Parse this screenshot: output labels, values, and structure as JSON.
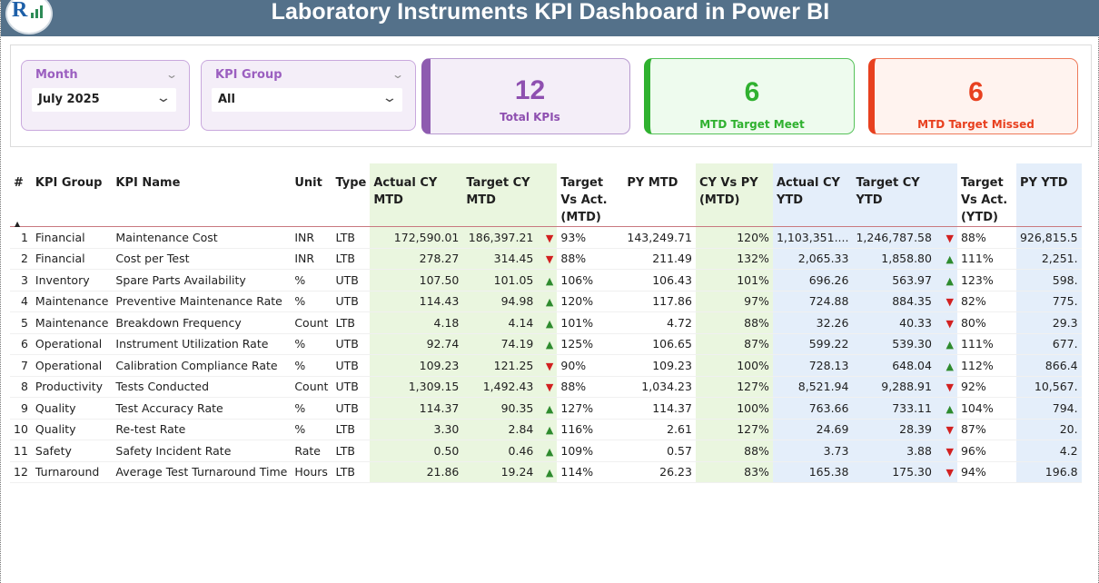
{
  "title": "Laboratory Instruments KPI Dashboard in Power BI",
  "slicers": {
    "month": {
      "label": "Month",
      "value": "July 2025"
    },
    "kpi_group": {
      "label": "KPI Group",
      "value": "All"
    }
  },
  "cards": {
    "total": {
      "value": "12",
      "caption": "Total KPIs",
      "color": "#8e4fb0"
    },
    "met": {
      "value": "6",
      "caption": "MTD Target Meet",
      "color": "#2fb12f"
    },
    "missed": {
      "value": "6",
      "caption": "MTD Target Missed",
      "color": "#e8401f"
    }
  },
  "colors": {
    "header": "#54718a",
    "mtd_col": "#eaf6df",
    "ytd_col": "#e4eefa",
    "up": "#2e8b2e",
    "down": "#d22020"
  },
  "table": {
    "headers": [
      "#",
      "KPI Group",
      "KPI Name",
      "Unit",
      "Type",
      "Actual CY MTD",
      "Target CY MTD",
      "",
      "Target Vs Act. (MTD)",
      "PY MTD",
      "CY Vs PY (MTD)",
      "Actual CY YTD",
      "Target CY YTD",
      "",
      "Target Vs Act. (YTD)",
      "PY YTD"
    ],
    "rows": [
      [
        "1",
        "Financial",
        "Maintenance Cost",
        "INR",
        "LTB",
        "172,590.01",
        "186,397.21",
        "down",
        "93%",
        "143,249.71",
        "120%",
        "1,103,351....",
        "1,246,787.58",
        "down",
        "88%",
        "926,815.5"
      ],
      [
        "2",
        "Financial",
        "Cost per Test",
        "INR",
        "LTB",
        "278.27",
        "314.45",
        "down",
        "88%",
        "211.49",
        "132%",
        "2,065.33",
        "1,858.80",
        "up",
        "111%",
        "2,251."
      ],
      [
        "3",
        "Inventory",
        "Spare Parts Availability",
        "%",
        "UTB",
        "107.50",
        "101.05",
        "up",
        "106%",
        "106.43",
        "101%",
        "696.26",
        "563.97",
        "up",
        "123%",
        "598."
      ],
      [
        "4",
        "Maintenance",
        "Preventive Maintenance Rate",
        "%",
        "UTB",
        "114.43",
        "94.98",
        "up",
        "120%",
        "117.86",
        "97%",
        "724.88",
        "884.35",
        "down",
        "82%",
        "775."
      ],
      [
        "5",
        "Maintenance",
        "Breakdown Frequency",
        "Count",
        "LTB",
        "4.18",
        "4.14",
        "up",
        "101%",
        "4.72",
        "88%",
        "32.26",
        "40.33",
        "down",
        "80%",
        "29.3"
      ],
      [
        "6",
        "Operational",
        "Instrument Utilization Rate",
        "%",
        "UTB",
        "92.74",
        "74.19",
        "up",
        "125%",
        "106.65",
        "87%",
        "599.22",
        "539.30",
        "up",
        "111%",
        "677."
      ],
      [
        "7",
        "Operational",
        "Calibration Compliance Rate",
        "%",
        "UTB",
        "109.23",
        "121.25",
        "down",
        "90%",
        "109.23",
        "100%",
        "728.13",
        "648.04",
        "up",
        "112%",
        "866.4"
      ],
      [
        "8",
        "Productivity",
        "Tests Conducted",
        "Count",
        "UTB",
        "1,309.15",
        "1,492.43",
        "down",
        "88%",
        "1,034.23",
        "127%",
        "8,521.94",
        "9,288.91",
        "down",
        "92%",
        "10,567."
      ],
      [
        "9",
        "Quality",
        "Test Accuracy Rate",
        "%",
        "UTB",
        "114.37",
        "90.35",
        "up",
        "127%",
        "114.37",
        "100%",
        "763.66",
        "733.11",
        "up",
        "104%",
        "794."
      ],
      [
        "10",
        "Quality",
        "Re-test Rate",
        "%",
        "LTB",
        "3.30",
        "2.84",
        "up",
        "116%",
        "2.61",
        "127%",
        "24.69",
        "28.39",
        "down",
        "87%",
        "20."
      ],
      [
        "11",
        "Safety",
        "Safety Incident Rate",
        "Rate",
        "LTB",
        "0.50",
        "0.46",
        "up",
        "109%",
        "0.57",
        "88%",
        "3.73",
        "3.88",
        "down",
        "96%",
        "4.2"
      ],
      [
        "12",
        "Turnaround",
        "Average Test Turnaround Time",
        "Hours",
        "LTB",
        "21.86",
        "19.24",
        "up",
        "114%",
        "26.23",
        "83%",
        "165.38",
        "175.30",
        "down",
        "94%",
        "196.8"
      ]
    ]
  }
}
